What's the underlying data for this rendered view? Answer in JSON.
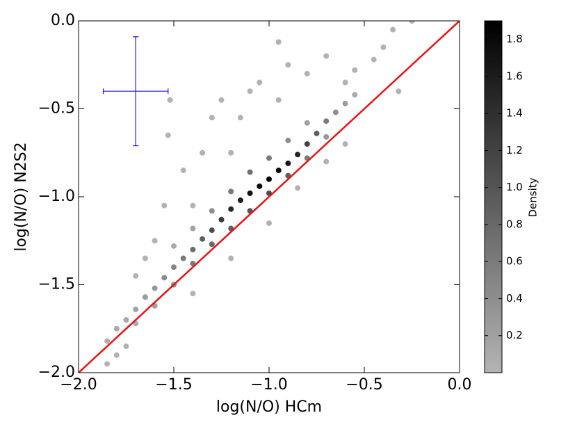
{
  "chart_data": {
    "type": "scatter",
    "xlabel": "log(N/O) HCm",
    "ylabel": "log(N/O) N2S2",
    "xlim": [
      -2,
      0
    ],
    "ylim": [
      -2,
      0
    ],
    "xticks": [
      {
        "value": -2,
        "label": "−2.0"
      },
      {
        "value": -1.5,
        "label": "−1.5"
      },
      {
        "value": -1,
        "label": "−1.0"
      },
      {
        "value": -0.5,
        "label": "−0.5"
      },
      {
        "value": 0,
        "label": "0.0"
      }
    ],
    "yticks": [
      {
        "value": -2,
        "label": "−2.0"
      },
      {
        "value": -1.5,
        "label": "−1.5"
      },
      {
        "value": -1,
        "label": "−1.0"
      },
      {
        "value": -0.5,
        "label": "−0.5"
      },
      {
        "value": 0,
        "label": "0.0"
      }
    ],
    "grid": false,
    "points": {
      "x": [
        -1.85,
        -1.8,
        -1.75,
        -1.7,
        -1.65,
        -1.6,
        -1.55,
        -1.5,
        -1.45,
        -1.4,
        -1.35,
        -1.3,
        -1.25,
        -1.2,
        -1.15,
        -1.1,
        -1.05,
        -1.0,
        -0.95,
        -0.9,
        -0.85,
        -0.8,
        -0.75,
        -0.7,
        -0.65,
        -0.6,
        -0.55,
        -1.7,
        -1.6,
        -1.5,
        -1.4,
        -1.3,
        -1.2,
        -1.1,
        -1.0,
        -0.9,
        -0.8,
        -0.7,
        -1.5,
        -1.4,
        -1.3,
        -1.2,
        -1.1,
        -1.0,
        -0.9,
        -0.8,
        -1.52,
        -1.53,
        -1.55,
        -1.45,
        -1.35,
        -1.3,
        -1.25,
        -1.15,
        -1.1,
        -1.05,
        -0.95,
        -0.9,
        -0.8,
        -0.7,
        -0.6,
        -0.45,
        -0.4,
        -0.35,
        -0.32,
        -0.25,
        -0.95,
        -0.55,
        -1.6,
        -1.65,
        -1.7,
        -1.8,
        -1.75,
        -1.85,
        -1.2,
        -1.4,
        -0.6,
        -0.7,
        -0.85,
        -1.0,
        -1.2,
        -1.4
      ],
      "y": [
        -1.82,
        -1.75,
        -1.7,
        -1.64,
        -1.57,
        -1.52,
        -1.46,
        -1.4,
        -1.35,
        -1.3,
        -1.24,
        -1.19,
        -1.13,
        -1.07,
        -1.02,
        -0.98,
        -0.94,
        -0.9,
        -0.85,
        -0.81,
        -0.76,
        -0.7,
        -0.64,
        -0.57,
        -0.52,
        -0.47,
        -0.42,
        -1.72,
        -1.62,
        -1.5,
        -1.38,
        -1.27,
        -1.18,
        -1.08,
        -0.98,
        -0.88,
        -0.78,
        -0.66,
        -1.28,
        -1.18,
        -1.08,
        -0.97,
        -0.86,
        -0.78,
        -0.68,
        -0.58,
        -0.45,
        -0.65,
        -1.05,
        -0.85,
        -0.75,
        -0.55,
        -0.45,
        -0.55,
        -0.4,
        -0.35,
        -0.45,
        -0.25,
        -0.3,
        -0.2,
        -0.35,
        -0.22,
        -0.15,
        -0.05,
        -0.4,
        0.0,
        -0.12,
        -0.28,
        -1.25,
        -1.35,
        -1.45,
        -1.9,
        -1.85,
        -1.95,
        -0.75,
        -1.05,
        -0.7,
        -0.8,
        -0.95,
        -1.15,
        -1.35,
        -1.55
      ],
      "density": [
        0.05,
        0.1,
        0.15,
        0.2,
        0.25,
        0.3,
        0.4,
        0.5,
        0.6,
        0.75,
        0.9,
        1.1,
        1.3,
        1.5,
        1.6,
        1.7,
        1.8,
        1.85,
        1.8,
        1.7,
        1.5,
        1.2,
        0.9,
        0.6,
        0.4,
        0.25,
        0.1,
        0.1,
        0.2,
        0.4,
        0.6,
        0.8,
        0.9,
        1.0,
        1.1,
        0.9,
        0.6,
        0.3,
        0.1,
        0.2,
        0.4,
        0.6,
        0.7,
        0.6,
        0.4,
        0.2,
        0.02,
        0.02,
        0.02,
        0.02,
        0.02,
        0.02,
        0.02,
        0.02,
        0.02,
        0.02,
        0.02,
        0.02,
        0.02,
        0.02,
        0.02,
        0.02,
        0.02,
        0.02,
        0.02,
        0.02,
        0.02,
        0.02,
        0.02,
        0.02,
        0.02,
        0.02,
        0.02,
        0.02,
        0.02,
        0.02,
        0.02,
        0.02,
        0.02,
        0.02,
        0.02,
        0.02
      ]
    },
    "reference_line": {
      "x": [
        -2,
        0
      ],
      "y": [
        -2,
        0
      ],
      "color": "#ee1111"
    },
    "error_bar": {
      "x": -1.7,
      "y": -0.4,
      "xerr": 0.17,
      "yerr": 0.31,
      "color": "#1a1adf"
    },
    "colorbar": {
      "label": "Density",
      "clim": [
        0,
        1.9
      ],
      "colormap": [
        "#b4b4b4",
        "#000000"
      ],
      "ticks": [
        0.2,
        0.4,
        0.6,
        0.8,
        {
          "value": 1,
          "label": "1.0"
        },
        1.2,
        1.4,
        1.6,
        1.8
      ]
    }
  }
}
